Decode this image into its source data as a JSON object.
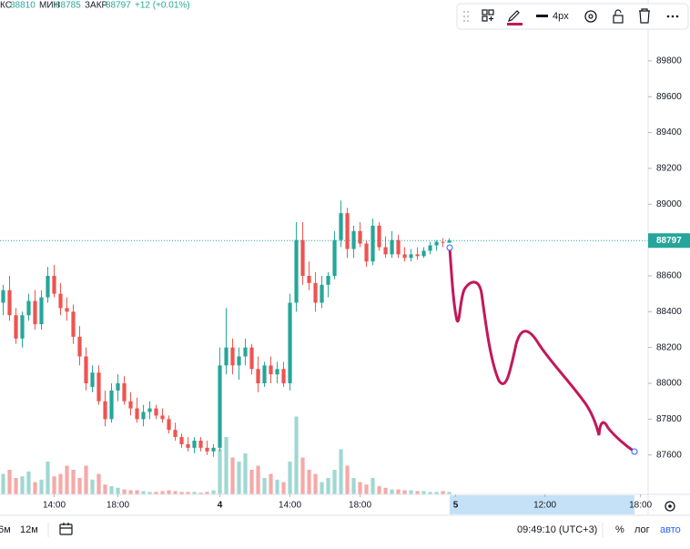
{
  "chart_data": {
    "type": "candlestick",
    "header": {
      "high_label": "КС",
      "low_label": "МИН",
      "close_label": "ЗАКР",
      "change_label": "+12 (+0.01%)"
    },
    "toolbar": {
      "width_label": "4px"
    },
    "bottom_bar": {
      "ranges": [
        "6м",
        "12м"
      ],
      "clock": "09:49:10 (UTC+3)",
      "percent": "%",
      "log": "лог",
      "auto": "авто"
    },
    "up_color": "#26a69a",
    "down_color": "#ef5350",
    "volume_up_color": "#9fd8d2",
    "volume_down_color": "#f5a9a7",
    "x": [
      0,
      1,
      2,
      3,
      4,
      5,
      6,
      7,
      8,
      9,
      10,
      11,
      12,
      13,
      14,
      15,
      16,
      17,
      18,
      19,
      20,
      21,
      22,
      23,
      24,
      25,
      26,
      27,
      28,
      29,
      30,
      31,
      32,
      33,
      34,
      35,
      36,
      37,
      38,
      39,
      40,
      41,
      42,
      43,
      44,
      45,
      46,
      47,
      48,
      49,
      50,
      51,
      52,
      53,
      54,
      55,
      56,
      57,
      58,
      59,
      60,
      61,
      62,
      63,
      64,
      65,
      66,
      67,
      68,
      69,
      70
    ],
    "open": [
      88450,
      88520,
      88380,
      88250,
      88380,
      88460,
      88330,
      88480,
      88600,
      88500,
      88420,
      88400,
      88260,
      88150,
      87980,
      88060,
      87900,
      87800,
      87960,
      88000,
      87900,
      87860,
      87800,
      87840,
      87860,
      87820,
      87800,
      87740,
      87700,
      87660,
      87640,
      87680,
      87640,
      87620,
      87640,
      88100,
      88200,
      88100,
      88150,
      88200,
      88080,
      88000,
      88100,
      88050,
      88080,
      88000,
      88450,
      88800,
      88600,
      88560,
      88450,
      88550,
      88600,
      88800,
      88950,
      88750,
      88850,
      88780,
      88680,
      88880,
      88760,
      88720,
      88800,
      88720,
      88700,
      88720,
      88710,
      88740,
      88770,
      88790,
      88785
    ],
    "high": [
      88550,
      88600,
      88420,
      88400,
      88500,
      88520,
      88520,
      88650,
      88660,
      88560,
      88480,
      88440,
      88320,
      88200,
      88100,
      88100,
      87960,
      88000,
      88050,
      88040,
      87950,
      87920,
      87880,
      87900,
      87880,
      87860,
      87820,
      87780,
      87720,
      87700,
      87700,
      87700,
      87680,
      87660,
      88200,
      88420,
      88250,
      88200,
      88250,
      88220,
      88150,
      88120,
      88150,
      88120,
      88120,
      88500,
      88900,
      88900,
      88680,
      88620,
      88600,
      88620,
      88850,
      89020,
      88980,
      88880,
      88900,
      88800,
      88920,
      88900,
      88820,
      88850,
      88830,
      88760,
      88750,
      88760,
      88760,
      88790,
      88800,
      88810,
      88810
    ],
    "low": [
      88380,
      88350,
      88220,
      88200,
      88350,
      88300,
      88300,
      88450,
      88480,
      88380,
      88350,
      88220,
      88100,
      87960,
      87950,
      87880,
      87760,
      87780,
      87900,
      87880,
      87820,
      87780,
      87760,
      87800,
      87800,
      87780,
      87720,
      87680,
      87640,
      87620,
      87610,
      87620,
      87600,
      87590,
      87620,
      88050,
      88050,
      88020,
      88100,
      88050,
      87950,
      87980,
      88000,
      88000,
      87980,
      87960,
      88400,
      88550,
      88520,
      88400,
      88420,
      88480,
      88580,
      88760,
      88700,
      88700,
      88760,
      88650,
      88660,
      88740,
      88700,
      88700,
      88700,
      88680,
      88680,
      88690,
      88700,
      88720,
      88740,
      88760,
      88785
    ],
    "close": [
      88520,
      88380,
      88250,
      88380,
      88460,
      88330,
      88480,
      88600,
      88500,
      88420,
      88400,
      88260,
      88150,
      88000,
      88060,
      87900,
      87800,
      87960,
      88000,
      87900,
      87860,
      87800,
      87840,
      87860,
      87820,
      87800,
      87740,
      87700,
      87660,
      87640,
      87680,
      87640,
      87620,
      87640,
      88100,
      88200,
      88100,
      88150,
      88200,
      88080,
      88000,
      88100,
      88050,
      88080,
      88000,
      88450,
      88800,
      88600,
      88560,
      88450,
      88550,
      88600,
      88800,
      88950,
      88750,
      88850,
      88780,
      88680,
      88880,
      88760,
      88720,
      88800,
      88720,
      88700,
      88720,
      88710,
      88740,
      88770,
      88790,
      88785,
      88797
    ],
    "volume": [
      25,
      30,
      20,
      22,
      28,
      15,
      18,
      40,
      22,
      25,
      35,
      30,
      20,
      35,
      18,
      25,
      12,
      10,
      8,
      6,
      5,
      5,
      4,
      3,
      3,
      4,
      5,
      4,
      3,
      3,
      3,
      2,
      3,
      5,
      55,
      70,
      45,
      40,
      50,
      30,
      35,
      20,
      25,
      18,
      15,
      40,
      95,
      45,
      30,
      25,
      15,
      20,
      30,
      55,
      35,
      20,
      15,
      12,
      20,
      10,
      8,
      6,
      6,
      5,
      5,
      4,
      4,
      3,
      3,
      4,
      3
    ],
    "xlim": [
      -0.5,
      101.2
    ],
    "xticks": [
      {
        "value": 8,
        "label": "14:00"
      },
      {
        "value": 18,
        "label": "18:00"
      },
      {
        "value": 34,
        "label": "4"
      },
      {
        "value": 45,
        "label": "14:00"
      },
      {
        "value": 56,
        "label": "18:00"
      },
      {
        "value": 71,
        "label": "5"
      },
      {
        "value": 85,
        "label": "12:00"
      },
      {
        "value": 100,
        "label": "18:00"
      }
    ],
    "ylim": [
      87380,
      90140
    ],
    "yticks": [
      87600,
      87800,
      88000,
      88200,
      88400,
      88600,
      88800,
      89000,
      89200,
      89400,
      89600,
      89800
    ],
    "y2lim": [
      0,
      100
    ],
    "grid": false
  }
}
